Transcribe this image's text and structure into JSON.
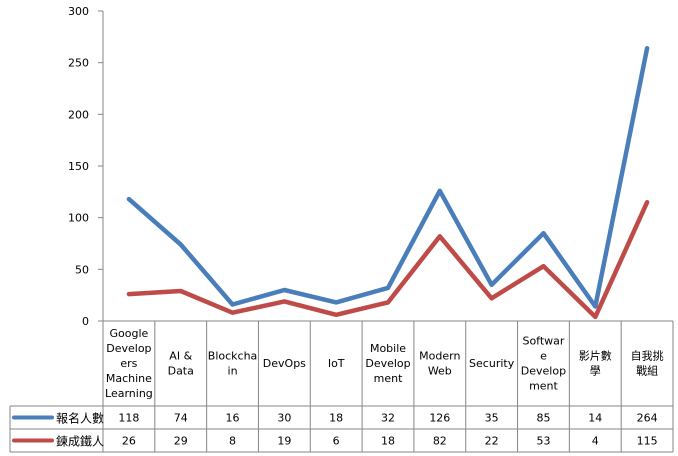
{
  "chart_data": {
    "type": "line",
    "categories": [
      "Google Developers Machine Learning",
      "AI & Data",
      "Blockchain",
      "DevOps",
      "IoT",
      "Mobile Development",
      "Modern Web",
      "Security",
      "Software Development",
      "影片數學",
      "自我挑戰組"
    ],
    "category_lines": [
      [
        "Google",
        "Develop",
        "ers",
        "Machine",
        "Learning"
      ],
      [
        "AI &",
        "Data"
      ],
      [
        "Blockcha",
        "in"
      ],
      [
        "DevOps"
      ],
      [
        "IoT"
      ],
      [
        "Mobile",
        "Develop",
        "ment"
      ],
      [
        "Modern",
        "Web"
      ],
      [
        "Security"
      ],
      [
        "Softwar",
        "e",
        "Develop",
        "ment"
      ],
      [
        "影片數",
        "學"
      ],
      [
        "自我挑",
        "戰組"
      ]
    ],
    "series": [
      {
        "name": "報名人數",
        "color": "#4a7ebb",
        "values": [
          118,
          74,
          16,
          30,
          18,
          32,
          126,
          35,
          85,
          14,
          264
        ]
      },
      {
        "name": "鍊成鐵人",
        "color": "#be4b48",
        "values": [
          26,
          29,
          8,
          19,
          6,
          18,
          82,
          22,
          53,
          4,
          115
        ]
      }
    ],
    "ylim": [
      0,
      300
    ],
    "yticks": [
      0,
      50,
      100,
      150,
      200,
      250,
      300
    ],
    "grid": false,
    "legend": "data-table",
    "title": "",
    "xlabel": "",
    "ylabel": ""
  }
}
